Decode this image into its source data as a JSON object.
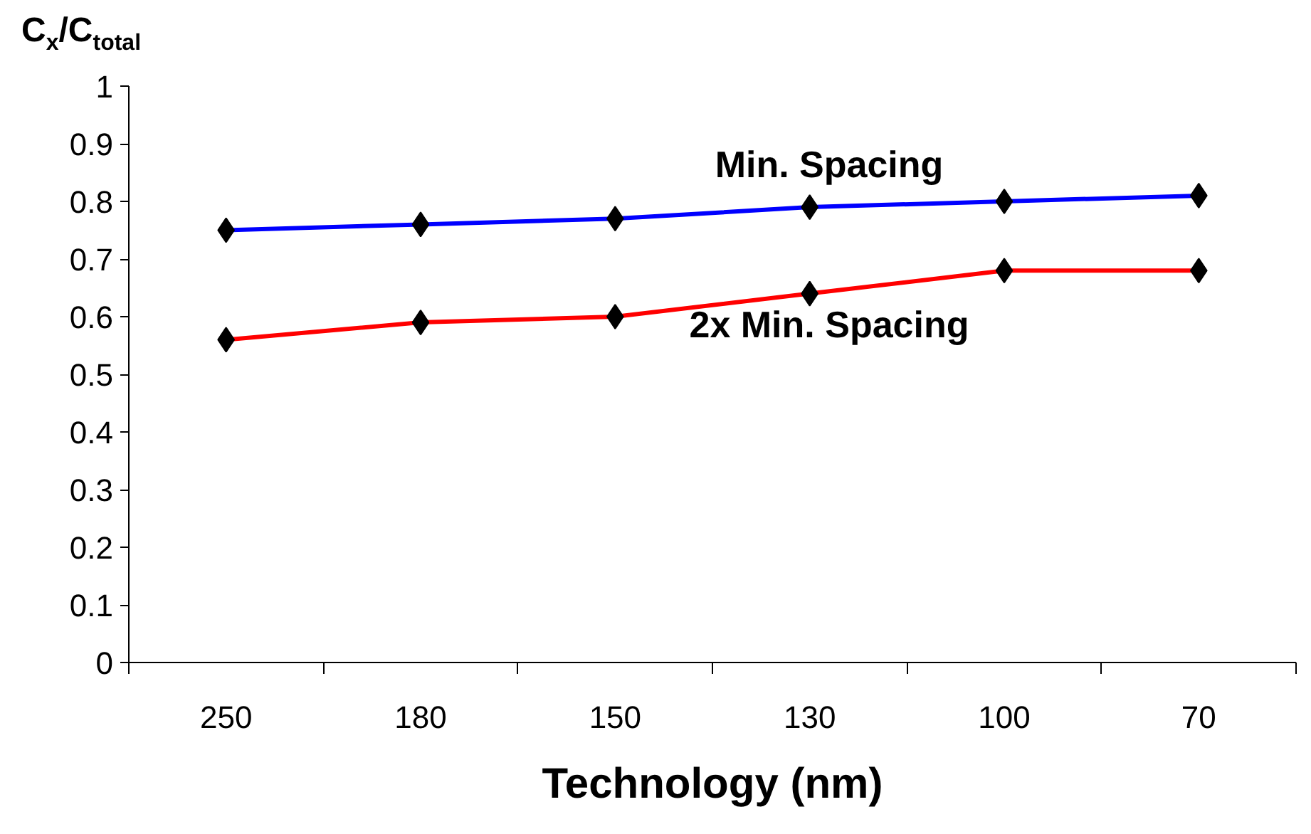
{
  "chart_data": {
    "type": "line",
    "ylabel": "C$_{x}$/C$_{total}$",
    "xlabel": "Technology (nm)",
    "categories": [
      "250",
      "180",
      "150",
      "130",
      "100",
      "70"
    ],
    "series": [
      {
        "name": "Min. Spacing",
        "color": "#0000ff",
        "values": [
          0.75,
          0.76,
          0.77,
          0.79,
          0.8,
          0.81
        ]
      },
      {
        "name": "2x Min. Spacing",
        "color": "#ff0000",
        "values": [
          0.56,
          0.59,
          0.6,
          0.64,
          0.68,
          0.68
        ]
      }
    ],
    "ylim": [
      0,
      1
    ],
    "yticks": [
      0,
      0.1,
      0.2,
      0.3,
      0.4,
      0.5,
      0.6,
      0.7,
      0.8,
      0.9,
      1
    ],
    "grid": false,
    "marker": "diamond",
    "line_style": "solid"
  }
}
